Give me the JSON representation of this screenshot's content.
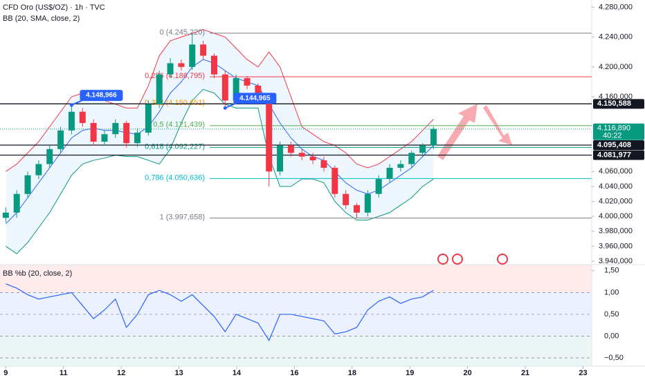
{
  "chart_data": [
    {
      "type": "candlestick",
      "title": "CFD Oro (US$/OZ) · 1h · TVC",
      "subtitle": "BB (20, SMA, close, 2)",
      "xlim": [
        -0.1,
        10.15
      ],
      "ylim": [
        3935400,
        4289600
      ],
      "yticks": [
        {
          "value": 4280000,
          "label": "4.280,000"
        },
        {
          "value": 4240000,
          "label": "4.240,000"
        },
        {
          "value": 4200000,
          "label": "4.200,000"
        },
        {
          "value": 4160000,
          "label": "4.160,000"
        },
        {
          "value": 4060000,
          "label": "4.060,000"
        },
        {
          "value": 4040000,
          "label": "4.040,000"
        },
        {
          "value": 4020000,
          "label": "4.020,000"
        },
        {
          "value": 4000000,
          "label": "4.000,000"
        },
        {
          "value": 3980000,
          "label": "3.980,000"
        },
        {
          "value": 3960000,
          "label": "3.960,000"
        },
        {
          "value": 3940000,
          "label": "3.940,000"
        }
      ],
      "up_color": "#089981",
      "down_color": "#f23645",
      "x": [
        0,
        0.19,
        0.38,
        0.57,
        0.76,
        0.95,
        1.14,
        1.33,
        1.52,
        1.71,
        1.9,
        2.09,
        2.28,
        2.47,
        2.66,
        2.85,
        3.04,
        3.23,
        3.42,
        3.61,
        3.8,
        3.99,
        4.18,
        4.37,
        4.56,
        4.75,
        4.94,
        5.13,
        5.32,
        5.51,
        5.7,
        5.89,
        6.08,
        6.27,
        6.46,
        6.65,
        6.84,
        7.03,
        7.22,
        7.41
      ],
      "open": [
        3998000,
        4005000,
        4030000,
        4055000,
        4070000,
        4090000,
        4115000,
        4140000,
        4125000,
        4100000,
        4110000,
        4125000,
        4098000,
        4112000,
        4150000,
        4190000,
        4205000,
        4200000,
        4230000,
        4215000,
        4190000,
        4155000,
        4185000,
        4175000,
        4160000,
        4060000,
        4095000,
        4085000,
        4080000,
        4075000,
        4065000,
        4030000,
        4015000,
        4005000,
        4030000,
        4050000,
        4065000,
        4070000,
        4085000,
        4095000
      ],
      "high": [
        4012000,
        4035000,
        4060000,
        4075000,
        4095000,
        4120000,
        4148966,
        4145000,
        4130000,
        4115000,
        4130000,
        4128000,
        4118000,
        4155000,
        4195000,
        4212000,
        4210000,
        4245220,
        4235000,
        4218000,
        4195000,
        4190000,
        4188000,
        4178000,
        4162000,
        4100000,
        4100000,
        4090000,
        4085000,
        4080000,
        4068000,
        4035000,
        4018000,
        4035000,
        4055000,
        4070000,
        4075000,
        4088000,
        4098000,
        4120000
      ],
      "low": [
        3992000,
        3998000,
        4025000,
        4050000,
        4065000,
        4085000,
        4110000,
        4120000,
        4095000,
        4095000,
        4105000,
        4092000,
        4093000,
        4108000,
        4145000,
        4185000,
        4195000,
        4196000,
        4210000,
        4185000,
        4144965,
        4150000,
        4170000,
        4155000,
        4040000,
        4055000,
        4080000,
        4075000,
        4070000,
        4060000,
        4025000,
        4010000,
        3997658,
        4000000,
        4025000,
        4045000,
        4060000,
        4065000,
        4080000,
        4090000
      ],
      "close": [
        4005000,
        4030000,
        4055000,
        4070000,
        4090000,
        4115000,
        4140000,
        4125000,
        4100000,
        4110000,
        4125000,
        4098000,
        4112000,
        4150000,
        4190000,
        4205000,
        4200000,
        4230000,
        4215000,
        4190000,
        4155000,
        4185000,
        4175000,
        4160000,
        4060000,
        4095000,
        4085000,
        4080000,
        4075000,
        4065000,
        4030000,
        4015000,
        4005000,
        4030000,
        4050000,
        4065000,
        4070000,
        4085000,
        4095000,
        4116890
      ],
      "bb_upper": {
        "color": "#f23645",
        "values": [
          4060000,
          4070000,
          4085000,
          4100000,
          4120000,
          4140000,
          4160000,
          4165000,
          4162000,
          4155000,
          4150000,
          4145000,
          4145000,
          4175000,
          4215000,
          4235000,
          4240000,
          4245000,
          4250000,
          4245000,
          4240000,
          4225000,
          4210000,
          4200000,
          4220000,
          4200000,
          4160000,
          4120000,
          4110000,
          4100000,
          4095000,
          4085000,
          4070000,
          4065000,
          4070000,
          4080000,
          4090000,
          4100000,
          4115000,
          4130000
        ]
      },
      "bb_basis": {
        "color": "#2962ff",
        "values": [
          3990000,
          4005000,
          4025000,
          4045000,
          4065000,
          4085000,
          4105000,
          4115000,
          4118000,
          4115000,
          4115000,
          4112000,
          4110000,
          4120000,
          4140000,
          4165000,
          4180000,
          4200000,
          4210000,
          4205000,
          4195000,
          4185000,
          4180000,
          4175000,
          4150000,
          4125000,
          4105000,
          4090000,
          4080000,
          4075000,
          4060000,
          4045000,
          4035000,
          4030000,
          4035000,
          4045000,
          4055000,
          4065000,
          4080000,
          4095000
        ]
      },
      "bb_lower": {
        "color": "#089981",
        "values": [
          3960000,
          3950000,
          3965000,
          3985000,
          4005000,
          4030000,
          4055000,
          4070000,
          4075000,
          4078000,
          4082000,
          4080000,
          4080000,
          4075000,
          4070000,
          4090000,
          4125000,
          4155000,
          4170000,
          4165000,
          4150000,
          4145000,
          4145000,
          4145000,
          4080000,
          4040000,
          4040000,
          4050000,
          4050000,
          4045000,
          4020000,
          4005000,
          3995000,
          3995000,
          4000000,
          4005000,
          4015000,
          4025000,
          4040000,
          4050000
        ]
      },
      "fib_levels": [
        {
          "label": "0 (4.245,220)",
          "value": 4245220,
          "color": "#787b86"
        },
        {
          "label": "0,236 (4.186,795)",
          "value": 4186795,
          "color": "#f23645"
        },
        {
          "label": "0,382 (4.150,651)",
          "value": 4150651,
          "color": "#ff9800"
        },
        {
          "label": "0,5 (4.121,439)",
          "value": 4121439,
          "color": "#4caf50"
        },
        {
          "label": "0,618 (4.092,227)",
          "value": 4092227,
          "color": "#089981"
        },
        {
          "label": "0,786 (4.050,636)",
          "value": 4050636,
          "color": "#00bcd4"
        },
        {
          "label": "1 (3.997,658)",
          "value": 3997658,
          "color": "#787b86"
        }
      ],
      "price_lines": [
        {
          "value": 4150588,
          "label": "4.150,588",
          "color": "#131722"
        },
        {
          "value": 4095408,
          "label": "4.095,408",
          "color": "#131722"
        },
        {
          "value": 4081977,
          "label": "4.081,977",
          "color": "#131722"
        }
      ],
      "last_price": {
        "value": 4116890,
        "label": "4.116,890",
        "countdown": "40:22",
        "color": "#089981"
      },
      "callouts": [
        {
          "x": 1.14,
          "value": 4148966,
          "label": "4.148,966"
        },
        {
          "x": 3.8,
          "value": 4144965,
          "label": "4.144,965"
        }
      ]
    },
    {
      "type": "line",
      "title": "BB %b (20, close, 2)",
      "xlim": [
        -0.1,
        10.15
      ],
      "ylim": [
        -0.69,
        1.64
      ],
      "xticks": [
        {
          "value": 0,
          "label": "9"
        },
        {
          "value": 1,
          "label": "11"
        },
        {
          "value": 2,
          "label": "12"
        },
        {
          "value": 3,
          "label": "13"
        },
        {
          "value": 4,
          "label": "14"
        },
        {
          "value": 5,
          "label": "16"
        },
        {
          "value": 6,
          "label": "18"
        },
        {
          "value": 7,
          "label": "19"
        },
        {
          "value": 8,
          "label": "20"
        },
        {
          "value": 9,
          "label": "21"
        },
        {
          "value": 10,
          "label": "23"
        }
      ],
      "yticks": [
        {
          "value": 1.5,
          "label": "1,50"
        },
        {
          "value": 1,
          "label": "1,00"
        },
        {
          "value": 0.5,
          "label": "0,50"
        },
        {
          "value": 0,
          "label": "0,00"
        },
        {
          "value": -0.5,
          "label": "−0,50"
        }
      ],
      "color": "#2962ff",
      "x": [
        0,
        0.19,
        0.38,
        0.57,
        0.76,
        0.95,
        1.14,
        1.33,
        1.52,
        1.71,
        1.9,
        2.09,
        2.28,
        2.47,
        2.66,
        2.85,
        3.04,
        3.23,
        3.42,
        3.61,
        3.8,
        3.99,
        4.18,
        4.37,
        4.56,
        4.75,
        4.94,
        5.13,
        5.32,
        5.51,
        5.7,
        5.89,
        6.08,
        6.27,
        6.46,
        6.65,
        6.84,
        7.03,
        7.22,
        7.41
      ],
      "values": [
        1.2,
        1.1,
        0.95,
        0.85,
        0.9,
        0.95,
        1.0,
        0.7,
        0.4,
        0.6,
        0.85,
        0.2,
        0.5,
        0.95,
        1.05,
        0.95,
        0.8,
        0.95,
        0.7,
        0.45,
        0.1,
        0.5,
        0.4,
        0.3,
        -0.1,
        0.5,
        0.5,
        0.45,
        0.4,
        0.35,
        0.05,
        0.1,
        0.2,
        0.6,
        0.8,
        0.9,
        0.75,
        0.85,
        0.9,
        1.05
      ]
    }
  ]
}
